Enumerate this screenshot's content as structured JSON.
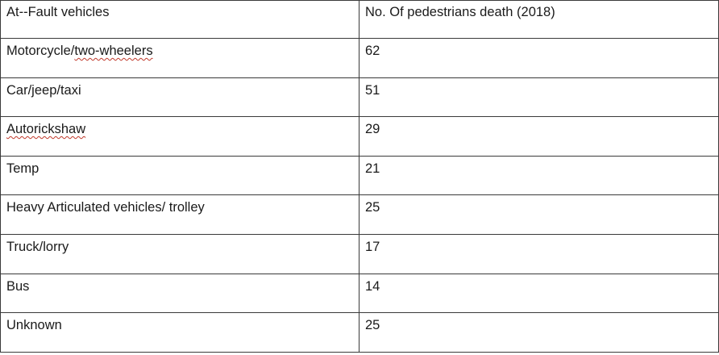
{
  "table": {
    "headers": [
      "At--Fault vehicles",
      "No. Of pedestrians death (2018)"
    ],
    "rows": [
      {
        "vehicle_prefix": "Motorcycle/",
        "vehicle_flagged": "two-wheelers",
        "deaths": "62"
      },
      {
        "vehicle": "Car/jeep/taxi",
        "deaths": "51"
      },
      {
        "vehicle_flagged": "Autorickshaw",
        "deaths": "29"
      },
      {
        "vehicle": "Temp",
        "deaths": "21"
      },
      {
        "vehicle": "Heavy Articulated vehicles/ trolley",
        "deaths": "25"
      },
      {
        "vehicle": "Truck/lorry",
        "deaths": "17"
      },
      {
        "vehicle": "Bus",
        "deaths": "14"
      },
      {
        "vehicle": "Unknown",
        "deaths": "25"
      }
    ]
  },
  "colors": {
    "border": "#3a3a3a",
    "text": "#1a1a1a",
    "spellcheck_underline": "#c0392b"
  }
}
